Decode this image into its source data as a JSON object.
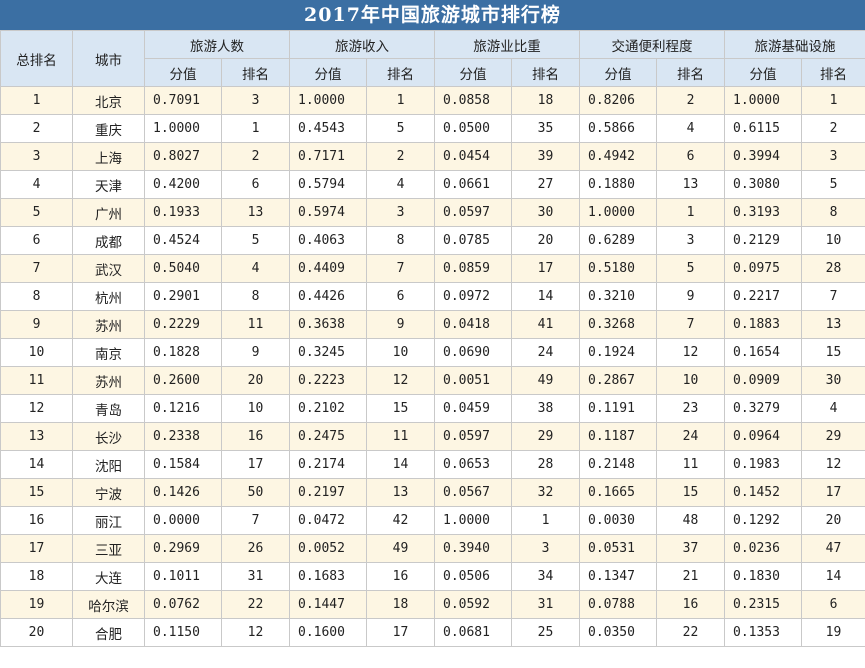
{
  "title": "2017年中国旅游城市排行榜",
  "headers": {
    "rank_col": "总排名",
    "city_col": "城市",
    "groups": [
      "旅游人数",
      "旅游收入",
      "旅游业比重",
      "交通便利程度",
      "旅游基础设施"
    ],
    "score_label": "分值",
    "rank_label": "排名"
  },
  "chart_data": {
    "type": "table",
    "title": "2017年中国旅游城市排行榜",
    "columns": [
      "总排名",
      "城市",
      "旅游人数-分值",
      "旅游人数-排名",
      "旅游收入-分值",
      "旅游收入-排名",
      "旅游业比重-分值",
      "旅游业比重-排名",
      "交通便利程度-分值",
      "交通便利程度-排名",
      "旅游基础设施-分值",
      "旅游基础设施-排名"
    ],
    "rows": [
      [
        "1",
        "北京",
        "0.7091",
        "3",
        "1.0000",
        "1",
        "0.0858",
        "18",
        "0.8206",
        "2",
        "1.0000",
        "1"
      ],
      [
        "2",
        "重庆",
        "1.0000",
        "1",
        "0.4543",
        "5",
        "0.0500",
        "35",
        "0.5866",
        "4",
        "0.6115",
        "2"
      ],
      [
        "3",
        "上海",
        "0.8027",
        "2",
        "0.7171",
        "2",
        "0.0454",
        "39",
        "0.4942",
        "6",
        "0.3994",
        "3"
      ],
      [
        "4",
        "天津",
        "0.4200",
        "6",
        "0.5794",
        "4",
        "0.0661",
        "27",
        "0.1880",
        "13",
        "0.3080",
        "5"
      ],
      [
        "5",
        "广州",
        "0.1933",
        "13",
        "0.5974",
        "3",
        "0.0597",
        "30",
        "1.0000",
        "1",
        "0.3193",
        "8"
      ],
      [
        "6",
        "成都",
        "0.4524",
        "5",
        "0.4063",
        "8",
        "0.0785",
        "20",
        "0.6289",
        "3",
        "0.2129",
        "10"
      ],
      [
        "7",
        "武汉",
        "0.5040",
        "4",
        "0.4409",
        "7",
        "0.0859",
        "17",
        "0.5180",
        "5",
        "0.0975",
        "28"
      ],
      [
        "8",
        "杭州",
        "0.2901",
        "8",
        "0.4426",
        "6",
        "0.0972",
        "14",
        "0.3210",
        "9",
        "0.2217",
        "7"
      ],
      [
        "9",
        "苏州",
        "0.2229",
        "11",
        "0.3638",
        "9",
        "0.0418",
        "41",
        "0.3268",
        "7",
        "0.1883",
        "13"
      ],
      [
        "10",
        "南京",
        "0.1828",
        "9",
        "0.3245",
        "10",
        "0.0690",
        "24",
        "0.1924",
        "12",
        "0.1654",
        "15"
      ],
      [
        "11",
        "苏州",
        "0.2600",
        "20",
        "0.2223",
        "12",
        "0.0051",
        "49",
        "0.2867",
        "10",
        "0.0909",
        "30"
      ],
      [
        "12",
        "青岛",
        "0.1216",
        "10",
        "0.2102",
        "15",
        "0.0459",
        "38",
        "0.1191",
        "23",
        "0.3279",
        "4"
      ],
      [
        "13",
        "长沙",
        "0.2338",
        "16",
        "0.2475",
        "11",
        "0.0597",
        "29",
        "0.1187",
        "24",
        "0.0964",
        "29"
      ],
      [
        "14",
        "沈阳",
        "0.1584",
        "17",
        "0.2174",
        "14",
        "0.0653",
        "28",
        "0.2148",
        "11",
        "0.1983",
        "12"
      ],
      [
        "15",
        "宁波",
        "0.1426",
        "50",
        "0.2197",
        "13",
        "0.0567",
        "32",
        "0.1665",
        "15",
        "0.1452",
        "17"
      ],
      [
        "16",
        "丽江",
        "0.0000",
        "7",
        "0.0472",
        "42",
        "1.0000",
        "1",
        "0.0030",
        "48",
        "0.1292",
        "20"
      ],
      [
        "17",
        "三亚",
        "0.2969",
        "26",
        "0.0052",
        "49",
        "0.3940",
        "3",
        "0.0531",
        "37",
        "0.0236",
        "47"
      ],
      [
        "18",
        "大连",
        "0.1011",
        "31",
        "0.1683",
        "16",
        "0.0506",
        "34",
        "0.1347",
        "21",
        "0.1830",
        "14"
      ],
      [
        "19",
        "哈尔滨",
        "0.0762",
        "22",
        "0.1447",
        "18",
        "0.0592",
        "31",
        "0.0788",
        "16",
        "0.2315",
        "6"
      ],
      [
        "20",
        "合肥",
        "0.1150",
        "12",
        "0.1600",
        "17",
        "0.0681",
        "25",
        "0.0350",
        "22",
        "0.1353",
        "19"
      ]
    ]
  },
  "colors": {
    "title_bg": "#3b6fa3",
    "header_bg": "#d9e6f3",
    "odd_row_bg": "#fdf6e3",
    "grid": "#c9c9c9"
  }
}
